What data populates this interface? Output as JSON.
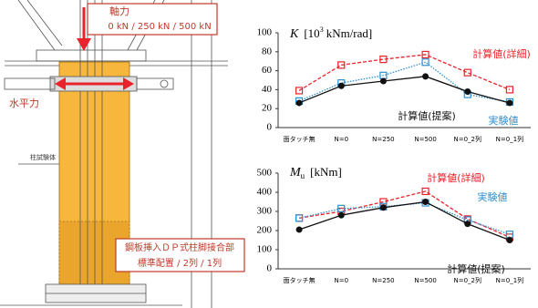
{
  "diagram": {
    "axial_label": "軸力",
    "axial_values": "0 kN / 250 kN / 500 kN",
    "lateral_label": "水平力",
    "column_label": "柱試験体",
    "joint_label": "鋼板挿入ＤＰ式柱脚接合部",
    "joint_config": "標準配置 / 2列 / 1列"
  },
  "chart_data": [
    {
      "type": "line",
      "title": [
        "K",
        "[10",
        "3",
        "kNm/rad]"
      ],
      "categories": [
        "面タッチ無",
        "N=0",
        "N=250",
        "N=500",
        "N=0_2列",
        "N=0_1列"
      ],
      "ylim": [
        0,
        100
      ],
      "yticks": [
        0,
        20,
        40,
        60,
        80,
        100
      ],
      "series": [
        {
          "name": "計算値(詳細)",
          "color": "#e8232a",
          "marker": "square",
          "dash": "dashed",
          "values": [
            39,
            66,
            72,
            77,
            58,
            40
          ]
        },
        {
          "name": "実験値",
          "color": "#2f8fd0",
          "marker": "square",
          "dash": "dotted",
          "values": [
            28,
            47,
            55,
            69,
            35,
            27
          ]
        },
        {
          "name": "計算値(提案)",
          "color": "#111111",
          "marker": "circle",
          "dash": "solid",
          "values": [
            26,
            44,
            49,
            54,
            38,
            26
          ]
        }
      ]
    },
    {
      "type": "line",
      "title": [
        "M",
        "u",
        "[kNm]"
      ],
      "categories": [
        "面タッチ無",
        "N=0",
        "N=250",
        "N=500",
        "N=0_2列",
        "N=0_1列"
      ],
      "ylim": [
        0,
        500
      ],
      "yticks": [
        0,
        100,
        200,
        300,
        400,
        500
      ],
      "series": [
        {
          "name": "計算値(詳細)",
          "color": "#e8232a",
          "marker": "square",
          "dash": "dashed",
          "values": [
            265,
            300,
            350,
            405,
            260,
            165
          ]
        },
        {
          "name": "実験値",
          "color": "#2f8fd0",
          "marker": "square",
          "dash": "dotted",
          "values": [
            265,
            315,
            325,
            345,
            255,
            180
          ]
        },
        {
          "name": "計算値(提案)",
          "color": "#111111",
          "marker": "circle",
          "dash": "solid",
          "values": [
            205,
            280,
            320,
            350,
            235,
            150
          ]
        }
      ]
    }
  ]
}
